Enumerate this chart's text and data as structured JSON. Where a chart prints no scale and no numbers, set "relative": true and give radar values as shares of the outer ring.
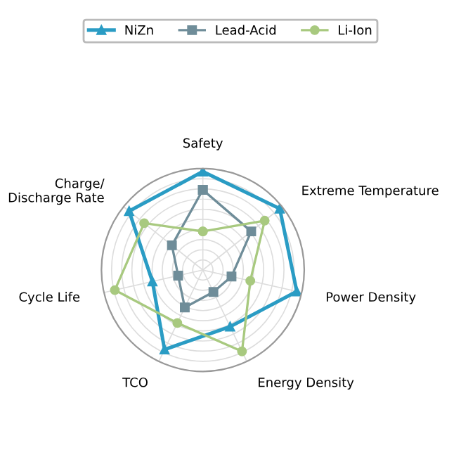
{
  "chart_data": {
    "type": "radar",
    "relative": true,
    "grid": true,
    "legend": "top",
    "categories": [
      "Safety",
      "Extreme Temperature",
      "Power Density",
      "Energy Density",
      "TCO",
      "Cycle Life",
      "Charge/\nDischarge Rate"
    ],
    "series": [
      {
        "name": "NiZn",
        "color": "#2a9cc4",
        "marker": "triangle",
        "values": [
          0.97,
          0.97,
          0.95,
          0.62,
          0.87,
          0.51,
          0.93
        ]
      },
      {
        "name": "Lead-Acid",
        "color": "#6f8d99",
        "marker": "square",
        "values": [
          0.79,
          0.61,
          0.29,
          0.24,
          0.41,
          0.25,
          0.39
        ]
      },
      {
        "name": "Li-Ion",
        "color": "#a8c97f",
        "marker": "circle",
        "values": [
          0.38,
          0.78,
          0.48,
          0.89,
          0.58,
          0.89,
          0.74
        ]
      }
    ]
  }
}
